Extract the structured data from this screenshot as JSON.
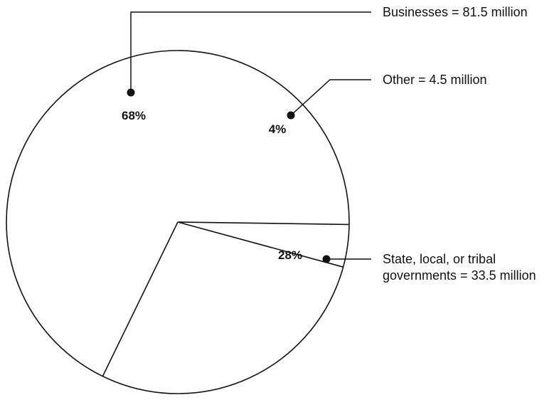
{
  "chart_data": {
    "type": "pie",
    "slices": [
      {
        "key": "businesses",
        "percent": 68,
        "percent_label": "68%",
        "callout": [
          "Businesses = 81.5 million"
        ],
        "value": 81.5,
        "unit": "million"
      },
      {
        "key": "other",
        "percent": 4,
        "percent_label": "4%",
        "callout": [
          "Other = 4.5 million"
        ],
        "value": 4.5,
        "unit": "million"
      },
      {
        "key": "government",
        "percent": 28,
        "percent_label": "28%",
        "callout": [
          "State, local, or tribal",
          "governments = 33.5 million"
        ],
        "value": 33.5,
        "unit": "million"
      }
    ]
  },
  "colors": {
    "stroke": "#111111",
    "fill": "#ffffff"
  }
}
